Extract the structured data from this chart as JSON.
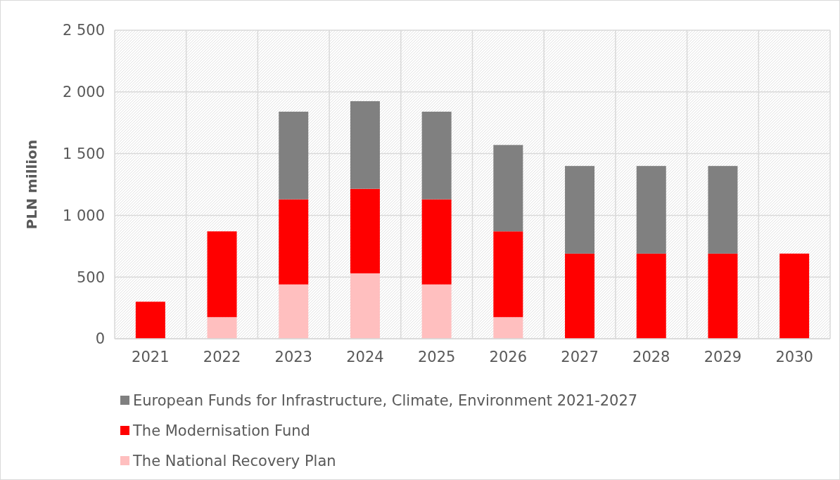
{
  "chart_data": {
    "type": "bar",
    "stacked": true,
    "ylabel": "PLN million",
    "categories": [
      "2021",
      "2022",
      "2023",
      "2024",
      "2025",
      "2026",
      "2027",
      "2028",
      "2029",
      "2030"
    ],
    "series": [
      {
        "name": "The National Recovery Plan",
        "color": "#ffbfbf",
        "values": [
          0,
          175,
          440,
          530,
          440,
          175,
          0,
          0,
          0,
          0
        ]
      },
      {
        "name": "The Modernisation Fund",
        "color": "#ff0000",
        "values": [
          300,
          695,
          690,
          685,
          690,
          695,
          690,
          690,
          690,
          690
        ]
      },
      {
        "name": "European Funds for Infrastructure, Climate, Environment 2021-2027",
        "color": "#808080",
        "values": [
          0,
          0,
          710,
          710,
          710,
          700,
          710,
          710,
          710,
          0
        ]
      }
    ],
    "ylim": [
      0,
      2500
    ],
    "yticks": [
      0,
      500,
      {
        "value": 1000,
        "label": "1 000"
      },
      {
        "value": 1500,
        "label": "1 500"
      },
      {
        "value": 2000,
        "label": "2 000"
      },
      {
        "value": 2500,
        "label": "2 500"
      }
    ],
    "grid": true,
    "legend": "bottom"
  }
}
